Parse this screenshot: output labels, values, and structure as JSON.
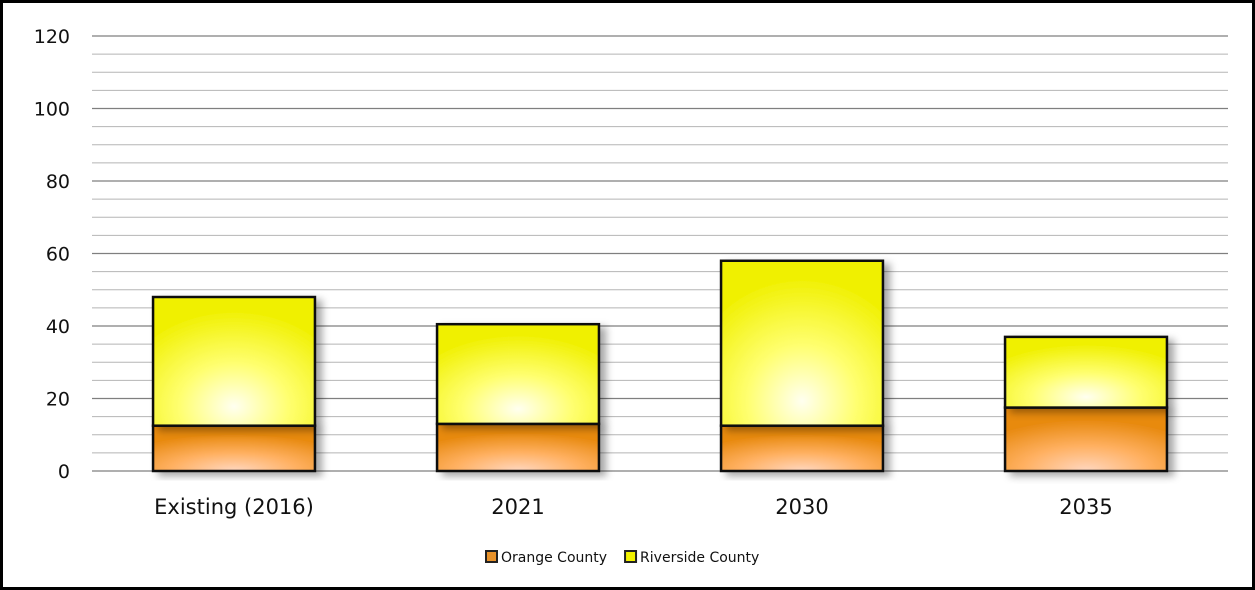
{
  "chart_data": {
    "type": "bar",
    "stacked": true,
    "categories": [
      "Existing (2016)",
      "2021",
      "2030",
      "2035"
    ],
    "series": [
      {
        "name": "Orange County",
        "values": [
          12.5,
          13,
          12.5,
          17.5
        ],
        "color": "#f0a030"
      },
      {
        "name": "Riverside County",
        "values": [
          35.5,
          27.5,
          45.5,
          19.5
        ],
        "color": "#ffff40"
      }
    ],
    "yticks": [
      0,
      20,
      40,
      60,
      80,
      100,
      120
    ],
    "ylim": [
      0,
      120
    ],
    "minor_step": 5,
    "grid": true,
    "legend": "bottom",
    "title": "",
    "xlabel": "",
    "ylabel": ""
  }
}
